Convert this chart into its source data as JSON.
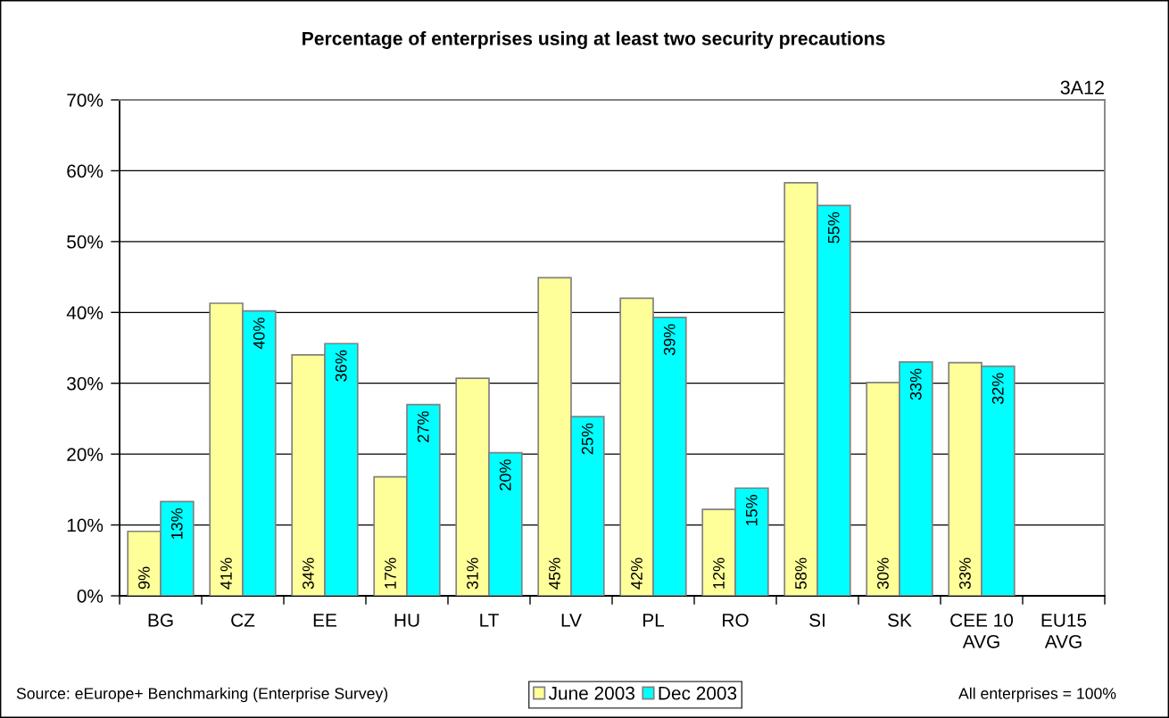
{
  "chart_data": {
    "type": "bar",
    "title": "Percentage of enterprises using at least two security precautions",
    "categories": [
      "BG",
      "CZ",
      "EE",
      "HU",
      "LT",
      "LV",
      "PL",
      "RO",
      "SI",
      "SK",
      "CEE 10\nAVG",
      "EU15\nAVG"
    ],
    "series": [
      {
        "name": "June 2003",
        "color": "#ffff99",
        "values": [
          9.1,
          41.3,
          34.0,
          16.8,
          30.7,
          44.9,
          42.0,
          12.2,
          58.3,
          30.1,
          32.9,
          null
        ],
        "value_labels": [
          "9%",
          "41%",
          "34%",
          "17%",
          "31%",
          "45%",
          "42%",
          "12%",
          "58%",
          "30%",
          "33%",
          null
        ]
      },
      {
        "name": "Dec 2003",
        "color": "#00ffff",
        "values": [
          13.3,
          40.2,
          35.6,
          27.0,
          20.2,
          25.3,
          39.3,
          15.2,
          55.1,
          33.0,
          32.4,
          null
        ],
        "value_labels": [
          "13%",
          "40%",
          "36%",
          "27%",
          "20%",
          "25%",
          "39%",
          "15%",
          "55%",
          "33%",
          "32%",
          null
        ]
      }
    ],
    "ylim": [
      0,
      70
    ],
    "yticks": [
      {
        "value": 0,
        "label": "0%"
      },
      {
        "value": 10,
        "label": "10%"
      },
      {
        "value": 20,
        "label": "20%"
      },
      {
        "value": 30,
        "label": "30%"
      },
      {
        "value": 40,
        "label": "40%"
      },
      {
        "value": 50,
        "label": "50%"
      },
      {
        "value": 60,
        "label": "60%"
      },
      {
        "value": 70,
        "label": "70%"
      }
    ],
    "grid": "y",
    "legend": "bottom",
    "annotations": [
      "3A12",
      "Source: eEurope+ Benchmarking (Enterprise Survey)",
      "All enterprises = 100%"
    ]
  }
}
